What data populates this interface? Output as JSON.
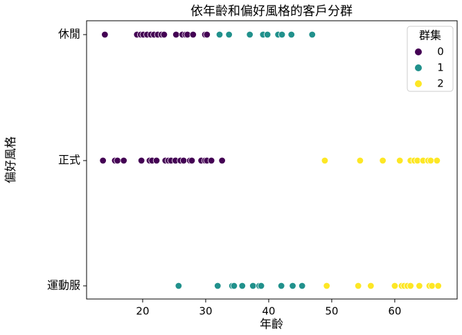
{
  "chart_data": {
    "type": "scatter",
    "title": "依年齡和偏好風格的客戶分群",
    "x_label": "年齡",
    "y_label": "偏好風格",
    "categories": [
      "休閒",
      "正式",
      "運動服"
    ],
    "xlim": [
      11.1,
      69.9
    ],
    "xticks": [
      20,
      30,
      40,
      50,
      60
    ],
    "legend_title": "群集",
    "legend_position": "upper right",
    "series": [
      {
        "name": "0",
        "color": "#440154",
        "x": [
          14.0,
          19.1,
          19.7,
          20.1,
          20.7,
          21.3,
          21.8,
          22.4,
          23.0,
          23.4,
          25.3,
          26.3,
          26.8,
          27.1,
          28.0,
          29.9,
          30.2,
          13.7,
          15.6,
          16.0,
          17.0,
          19.8,
          21.1,
          21.5,
          22.2,
          23.6,
          24.1,
          24.5,
          25.2,
          26.0,
          26.5,
          27.5,
          27.8,
          29.3,
          29.9,
          30.2,
          30.9,
          32.6
        ],
        "y": [
          "休閒",
          "休閒",
          "休閒",
          "休閒",
          "休閒",
          "休閒",
          "休閒",
          "休閒",
          "休閒",
          "休閒",
          "休閒",
          "休閒",
          "休閒",
          "休閒",
          "休閒",
          "休閒",
          "休閒",
          "正式",
          "正式",
          "正式",
          "正式",
          "正式",
          "正式",
          "正式",
          "正式",
          "正式",
          "正式",
          "正式",
          "正式",
          "正式",
          "正式",
          "正式",
          "正式",
          "正式",
          "正式",
          "正式",
          "正式",
          "正式"
        ]
      },
      {
        "name": "1",
        "color": "#21918c",
        "x": [
          32.2,
          33.7,
          37.0,
          39.1,
          39.8,
          41.5,
          42.1,
          43.6,
          46.9,
          25.7,
          31.9,
          34.2,
          34.5,
          35.8,
          37.5,
          38.5,
          38.8,
          42.0,
          43.8,
          45.3
        ],
        "y": [
          "休閒",
          "休閒",
          "休閒",
          "休閒",
          "休閒",
          "休閒",
          "休閒",
          "休閒",
          "休閒",
          "運動服",
          "運動服",
          "運動服",
          "運動服",
          "運動服",
          "運動服",
          "運動服",
          "運動服",
          "運動服",
          "運動服",
          "運動服"
        ]
      },
      {
        "name": "2",
        "color": "#fde725",
        "x": [
          48.9,
          54.5,
          58.1,
          60.8,
          62.5,
          63.1,
          63.6,
          64.5,
          65.3,
          65.7,
          66.7,
          49.2,
          54.2,
          56.2,
          60.0,
          61.1,
          61.5,
          62.0,
          62.5,
          63.9,
          65.5,
          65.9,
          66.9
        ],
        "y": [
          "正式",
          "正式",
          "正式",
          "正式",
          "正式",
          "正式",
          "正式",
          "正式",
          "正式",
          "正式",
          "正式",
          "運動服",
          "運動服",
          "運動服",
          "運動服",
          "運動服",
          "運動服",
          "運動服",
          "運動服",
          "運動服",
          "運動服",
          "運動服",
          "運動服"
        ]
      }
    ]
  }
}
